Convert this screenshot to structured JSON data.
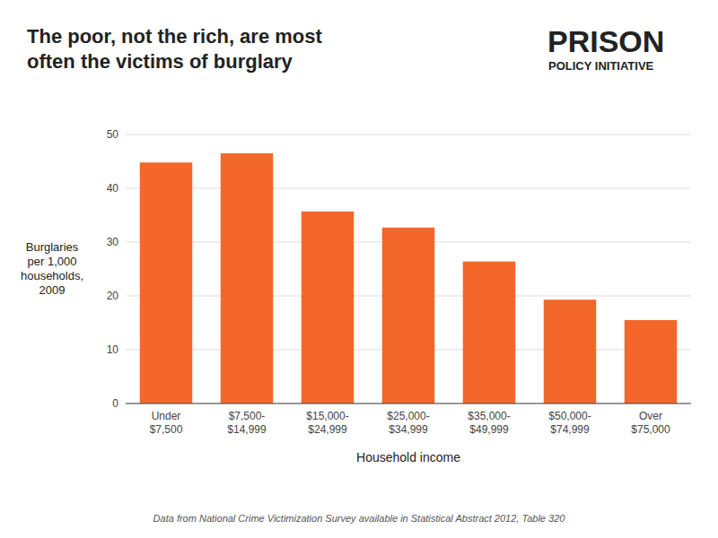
{
  "chart_data": {
    "type": "bar",
    "title": "The poor, not the rich, are most\noften the victims of burglary",
    "categories": [
      "Under\n$7,500",
      "$7,500-\n$14,999",
      "$15,000-\n$24,999",
      "$25,000-\n$34,999",
      "$35,000-\n$49,999",
      "$50,000-\n$74,999",
      "Over\n$75,000"
    ],
    "values": [
      44.8,
      46.5,
      35.7,
      32.7,
      26.4,
      19.3,
      15.5
    ],
    "color": "#F4672A",
    "xlabel": "Household income",
    "ylabel": "Burglaries\nper 1,000\nhouseholds,\n2009",
    "ylim": [
      0,
      50
    ],
    "yticks": [
      0,
      10,
      20,
      30,
      40,
      50
    ],
    "grid": true,
    "annotations": [
      "PRISON",
      "POLICY INITIATIVE",
      "Data from National Crime Victimization Survey available in Statistical Abstract 2012, Table 320"
    ]
  }
}
